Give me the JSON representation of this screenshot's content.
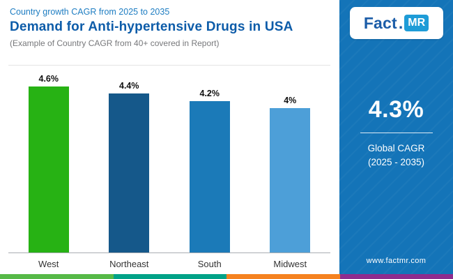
{
  "header": {
    "eyebrow": "Country growth CAGR from 2025 to 2035",
    "title": "Demand for Anti-hypertensive Drugs in USA",
    "subtitle": "(Example of Country CAGR from 40+ covered in Report)"
  },
  "chart_data": {
    "type": "bar",
    "categories": [
      "West",
      "Northeast",
      "South",
      "Midwest"
    ],
    "values": [
      4.6,
      4.4,
      4.2,
      4.0
    ],
    "value_labels": [
      "4.6%",
      "4.4%",
      "4.2%",
      "4%"
    ],
    "colors": [
      "#27b214",
      "#15588a",
      "#1b7ab8",
      "#4d9fd8"
    ],
    "ylim": [
      0,
      4.6
    ],
    "unit": "%",
    "grid": "off",
    "legend": "none"
  },
  "sidebar": {
    "logo_part1": "Fact",
    "logo_dot": ".",
    "logo_part2": "MR",
    "stat_value": "4.3%",
    "stat_label_line1": "Global CAGR",
    "stat_label_line2": "(2025 - 2035)",
    "website": "www.factmr.com",
    "bg_color": "#1474b8"
  },
  "footer_colors": [
    "#56b947",
    "#00a287",
    "#f58220",
    "#8e2c8e"
  ]
}
